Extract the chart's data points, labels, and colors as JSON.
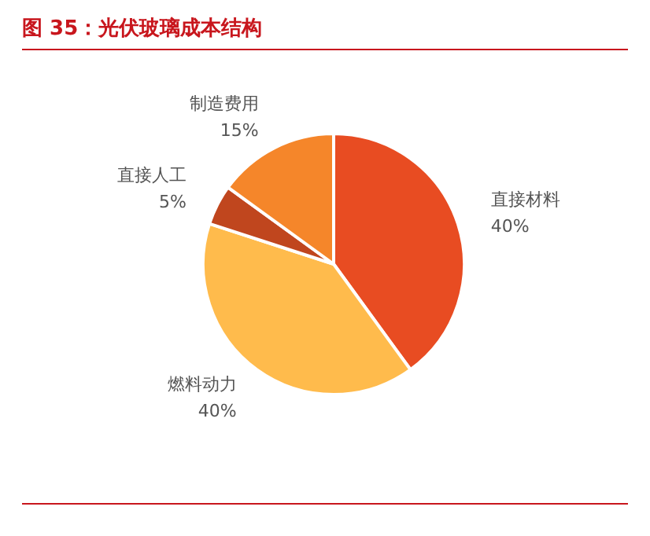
{
  "chart_data": {
    "type": "pie",
    "title": "图 35：光伏玻璃成本结构",
    "categories": [
      "直接材料",
      "燃料动力",
      "直接人工",
      "制造费用"
    ],
    "values": [
      40,
      40,
      5,
      15
    ],
    "colors": [
      "#e84c22",
      "#ffbb4c",
      "#c0461e",
      "#f5862a"
    ],
    "value_labels": [
      "40%",
      "40%",
      "5%",
      "15%"
    ],
    "legend": false
  }
}
